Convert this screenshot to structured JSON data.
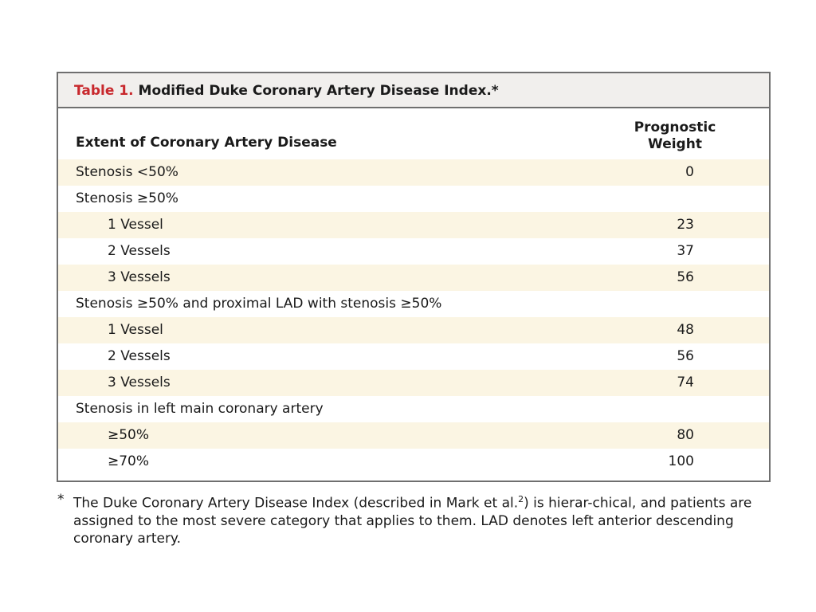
{
  "table": {
    "title_label": "Table 1.",
    "title_text": " Modified Duke Coronary Artery Disease Index.*",
    "header_left": "Extent of Coronary Artery Disease",
    "header_right_line1": "Prognostic",
    "header_right_line2": "Weight",
    "rows": [
      {
        "label": "Stenosis <50%",
        "value": "0",
        "indent": false,
        "shaded": true
      },
      {
        "label": "Stenosis ≥50%",
        "value": "",
        "indent": false,
        "shaded": false
      },
      {
        "label": "1 Vessel",
        "value": "23",
        "indent": true,
        "shaded": true
      },
      {
        "label": "2 Vessels",
        "value": "37",
        "indent": true,
        "shaded": false
      },
      {
        "label": "3 Vessels",
        "value": "56",
        "indent": true,
        "shaded": true
      },
      {
        "label": "Stenosis ≥50% and proximal LAD with stenosis ≥50%",
        "value": "",
        "indent": false,
        "shaded": false
      },
      {
        "label": "1 Vessel",
        "value": "48",
        "indent": true,
        "shaded": true
      },
      {
        "label": "2 Vessels",
        "value": "56",
        "indent": true,
        "shaded": false
      },
      {
        "label": "3 Vessels",
        "value": "74",
        "indent": true,
        "shaded": true
      },
      {
        "label": "Stenosis in left main coronary artery",
        "value": "",
        "indent": false,
        "shaded": false
      },
      {
        "label": "≥50%",
        "value": "80",
        "indent": true,
        "shaded": true
      },
      {
        "label": "≥70%",
        "value": "100",
        "indent": true,
        "shaded": false
      }
    ]
  },
  "footnote": {
    "mark": "*",
    "text_before_sup": "The Duke Coronary Artery Disease Index (described in Mark et al.",
    "sup": "2",
    "text_after_sup": ") is hierar-chical, and patients are assigned to the most severe category that applies to them. LAD denotes left anterior descending coronary artery."
  }
}
